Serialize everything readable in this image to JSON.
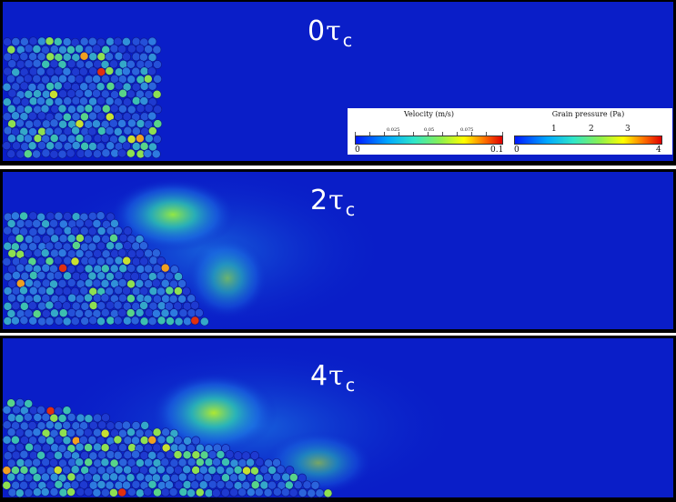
{
  "panels": [
    {
      "time_label": "0",
      "tau": "τ",
      "sub": "c"
    },
    {
      "time_label": "2",
      "tau": "τ",
      "sub": "c"
    },
    {
      "time_label": "4",
      "tau": "τ",
      "sub": "c"
    }
  ],
  "legend": {
    "velocity": {
      "title": "Velocity (m/s)",
      "ticks": [
        "0.025",
        "0.05",
        "0.075"
      ],
      "min": "0",
      "max": "0.1"
    },
    "pressure": {
      "title": "Grain pressure (Pa)",
      "ticks": [
        "1",
        "2",
        "3"
      ],
      "min": "0",
      "max": "4"
    }
  },
  "colors": {
    "fluid_background": "#0a1ec8",
    "colormap": [
      "#0000ff",
      "#00b4ff",
      "#20e0a0",
      "#70f040",
      "#ffff00",
      "#ff6000",
      "#e00000"
    ]
  }
}
